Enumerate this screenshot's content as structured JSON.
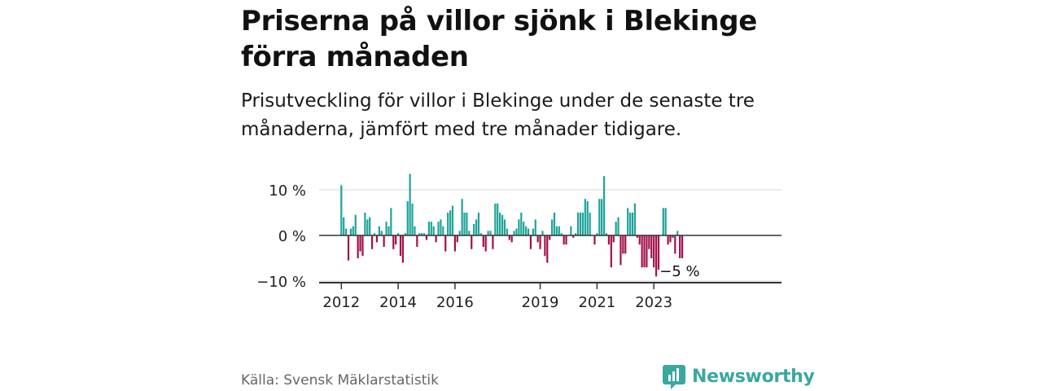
{
  "title": "Priserna på villor sjönk i Blekinge förra månaden",
  "subtitle": "Prisutveckling för villor i Blekinge under de senaste tre månaderna, jämfört med tre månader tidigare.",
  "source": "Källa: Svensk Mäklarstatistik",
  "brand": "Newsworthy",
  "colors": {
    "positive": "#1fa39a",
    "negative": "#a3104a",
    "brand": "#3aa8a0"
  },
  "chart_data": {
    "type": "bar",
    "x_start": "2012-01",
    "x_end": "2023-11",
    "ylim": [
      -10,
      14
    ],
    "ytick_values": [
      10,
      0,
      -10
    ],
    "ytick_labels": [
      "10 %",
      "0 %",
      "−10 %"
    ],
    "xtick_labels": [
      "2012",
      "2014",
      "2016",
      "2019",
      "2021",
      "2023"
    ],
    "xtick_positions": [
      "2012-01",
      "2014-01",
      "2016-01",
      "2019-01",
      "2021-01",
      "2023-01"
    ],
    "grid": true,
    "annotation": {
      "text": "−5 %",
      "at": "2023-11",
      "value": -5
    },
    "values": [
      11,
      4,
      1.5,
      -5.5,
      1.5,
      2,
      4.5,
      -5,
      -3.5,
      -4.5,
      5,
      3.5,
      4,
      -3,
      0.5,
      -1.5,
      2,
      1,
      -2.5,
      3,
      2,
      6,
      -3,
      -2,
      0.5,
      -4.5,
      -6,
      0.5,
      7.5,
      13.5,
      7,
      2,
      -2.5,
      0.5,
      0.5,
      0.5,
      -1,
      3,
      3,
      2,
      -1.5,
      3,
      3.5,
      2,
      -3.5,
      5,
      5.5,
      6.5,
      -3.5,
      -1.5,
      1,
      8,
      5,
      5,
      1,
      -3,
      2.5,
      3.5,
      5,
      0.5,
      -2.5,
      -3.5,
      1,
      1,
      -3,
      7,
      7,
      5,
      4.5,
      3.5,
      1.5,
      -1,
      -1.5,
      1,
      1.5,
      3.5,
      5,
      3,
      2,
      1.5,
      -3,
      1.5,
      3.5,
      -1.5,
      -3,
      1,
      -4.5,
      -6,
      -1,
      3.5,
      5,
      2,
      2,
      0.5,
      -2,
      -2,
      0,
      2,
      -0.5,
      0.5,
      5,
      5,
      5,
      8,
      7.5,
      5,
      0,
      -2,
      0.5,
      8,
      8,
      13,
      0.5,
      -2,
      -7,
      -1.5,
      3,
      4,
      -6.5,
      -4,
      -4,
      6,
      5,
      5,
      7,
      -0.5,
      -2,
      -7,
      -7,
      -7,
      -3,
      -5,
      -7,
      -9,
      -7.5,
      0,
      6,
      6,
      -2,
      -1.5,
      -0.5,
      -4,
      1,
      -5,
      -5
    ]
  }
}
